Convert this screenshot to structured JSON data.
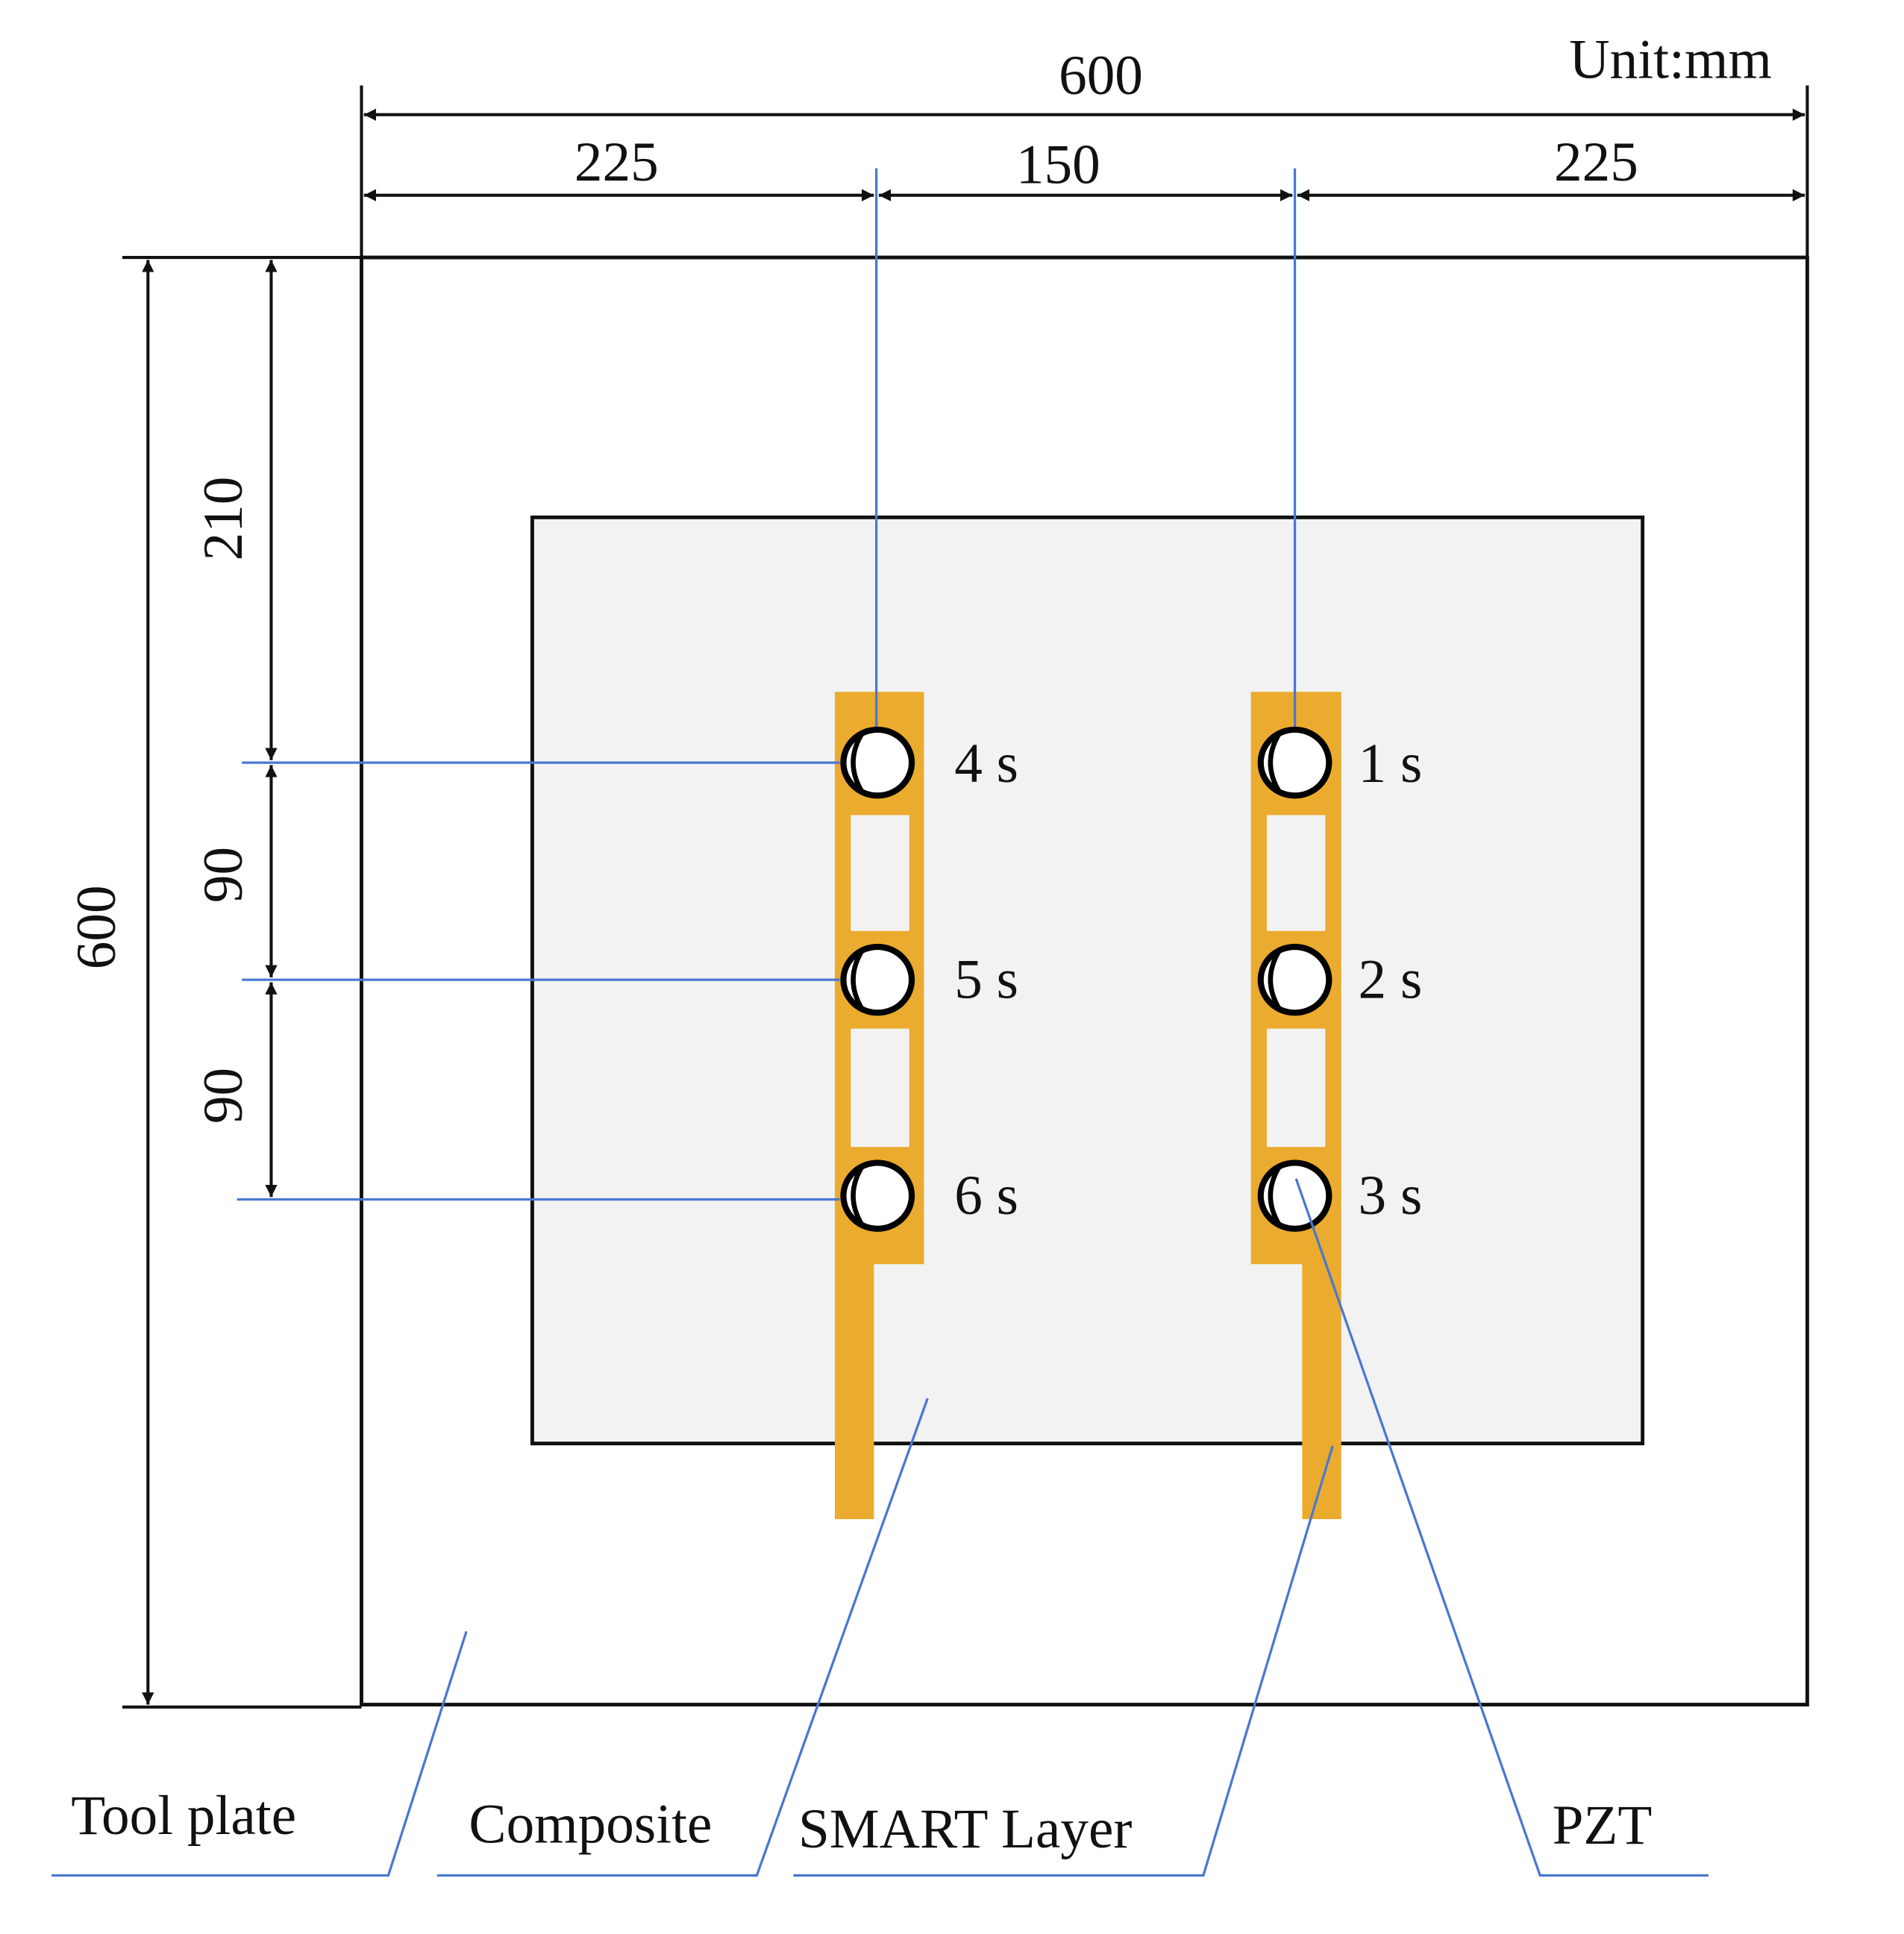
{
  "unit_label": "Unit:mm",
  "dimensions": {
    "total_width": "600",
    "left_offset": "225",
    "sensor_spacing": "150",
    "right_offset": "225",
    "total_height": "600",
    "top_offset": "210",
    "spacing_1": "90",
    "spacing_2": "90"
  },
  "sensors": [
    {
      "label": "4 s"
    },
    {
      "label": "5 s"
    },
    {
      "label": "6 s"
    },
    {
      "label": "1 s"
    },
    {
      "label": "2 s"
    },
    {
      "label": "3 s"
    }
  ],
  "callouts": {
    "tool_plate": "Tool plate",
    "composite": "Composite",
    "smart_layer": "SMART Layer",
    "pzt": "PZT"
  },
  "colors": {
    "smart_layer": "#EBAB2E",
    "composite": "#F2F2F2",
    "leader_lines": "#4A78D0",
    "outline": "#111111"
  }
}
